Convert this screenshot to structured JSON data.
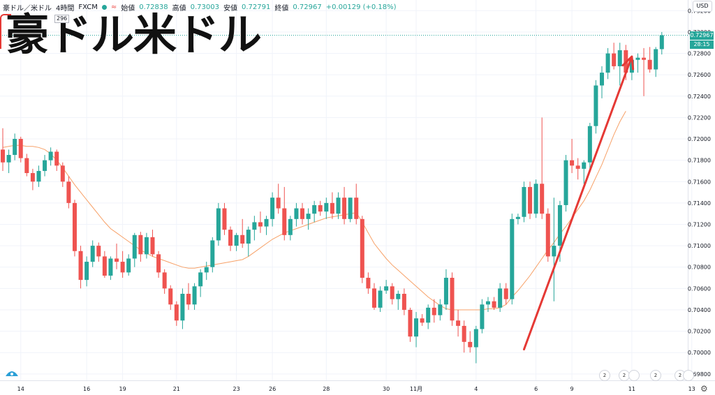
{
  "header": {
    "symbol": "豪ドル／米ドル",
    "interval": "4時間",
    "exchange": "FXCM",
    "market_icon": "≈",
    "open_label": "始値",
    "open_value": "0.72838",
    "high_label": "高値",
    "high_value": "0.73003",
    "low_label": "安値",
    "low_value": "0.72791",
    "close_label": "終値",
    "close_value": "0.72967",
    "change": "+0.00129 (+0.18%)",
    "indicator_value": "296"
  },
  "overlay_title": "豪ドル米ドル",
  "currency_button": "USD",
  "price_tags": {
    "last": "0.72967",
    "countdown": "28:15"
  },
  "events": [
    {
      "count": "2",
      "icon": "globe-flag-icon"
    },
    {
      "count": "2",
      "icon": "us-flag-icon"
    },
    {
      "count": "",
      "icon": "au-flag-icon"
    },
    {
      "count": "2",
      "icon": "us-flag-icon"
    },
    {
      "count": "2",
      "icon": "us-flag-icon"
    },
    {
      "count": "",
      "icon": "us-flag-icon"
    }
  ],
  "colors": {
    "up": "#26a69a",
    "down": "#ef5350",
    "ma": "#f7a168",
    "arrow": "#e53935",
    "grid": "#f0f3fa",
    "axis_text": "#131722"
  },
  "chart_data": {
    "type": "candlestick",
    "y_ticks": [
      "0.73200",
      "0.73000",
      "0.72800",
      "0.72600",
      "0.72400",
      "0.72200",
      "0.72000",
      "0.71800",
      "0.71600",
      "0.71400",
      "0.71200",
      "0.71000",
      "0.70800",
      "0.70600",
      "0.70400",
      "0.70200",
      "0.70000",
      "0.69800"
    ],
    "ylim": [
      0.6974,
      0.733
    ],
    "x_ticks": [
      {
        "label": "14",
        "index": 3
      },
      {
        "label": "16",
        "index": 14
      },
      {
        "label": "19",
        "index": 20
      },
      {
        "label": "21",
        "index": 29
      },
      {
        "label": "23",
        "index": 39
      },
      {
        "label": "26",
        "index": 45
      },
      {
        "label": "28",
        "index": 54
      },
      {
        "label": "30",
        "index": 64
      },
      {
        "label": "11月",
        "index": 69
      },
      {
        "label": "4",
        "index": 79
      },
      {
        "label": "6",
        "index": 89
      },
      {
        "label": "9",
        "index": 95
      },
      {
        "label": "11",
        "index": 105
      },
      {
        "label": "13",
        "index": 115
      }
    ],
    "ohlc": [
      [
        0.719,
        0.721,
        0.717,
        0.7178
      ],
      [
        0.7178,
        0.719,
        0.7168,
        0.7185
      ],
      [
        0.7185,
        0.7205,
        0.718,
        0.72
      ],
      [
        0.72,
        0.7202,
        0.7178,
        0.7182
      ],
      [
        0.7182,
        0.7186,
        0.7165,
        0.7168
      ],
      [
        0.7168,
        0.7172,
        0.7152,
        0.716
      ],
      [
        0.716,
        0.7175,
        0.7155,
        0.717
      ],
      [
        0.717,
        0.7185,
        0.7165,
        0.718
      ],
      [
        0.718,
        0.7192,
        0.7175,
        0.7188
      ],
      [
        0.7188,
        0.719,
        0.717,
        0.7175
      ],
      [
        0.7175,
        0.7178,
        0.7155,
        0.716
      ],
      [
        0.716,
        0.7165,
        0.7135,
        0.714
      ],
      [
        0.714,
        0.7143,
        0.709,
        0.7095
      ],
      [
        0.7095,
        0.71,
        0.706,
        0.7068
      ],
      [
        0.7068,
        0.709,
        0.7062,
        0.7085
      ],
      [
        0.7085,
        0.7105,
        0.708,
        0.71
      ],
      [
        0.71,
        0.7103,
        0.7085,
        0.709
      ],
      [
        0.709,
        0.7095,
        0.707,
        0.7072
      ],
      [
        0.7072,
        0.709,
        0.7068,
        0.7088
      ],
      [
        0.7088,
        0.7102,
        0.7078,
        0.7085
      ],
      [
        0.7085,
        0.7095,
        0.707,
        0.7075
      ],
      [
        0.7075,
        0.7092,
        0.7072,
        0.7088
      ],
      [
        0.7088,
        0.7112,
        0.708,
        0.711
      ],
      [
        0.711,
        0.7113,
        0.7085,
        0.7092
      ],
      [
        0.7092,
        0.7112,
        0.7088,
        0.7108
      ],
      [
        0.7108,
        0.7115,
        0.709,
        0.7092
      ],
      [
        0.7092,
        0.7095,
        0.707,
        0.7075
      ],
      [
        0.7075,
        0.7078,
        0.7055,
        0.706
      ],
      [
        0.706,
        0.7063,
        0.704,
        0.7045
      ],
      [
        0.7045,
        0.7048,
        0.7025,
        0.703
      ],
      [
        0.703,
        0.706,
        0.7022,
        0.7055
      ],
      [
        0.7055,
        0.7065,
        0.704,
        0.7045
      ],
      [
        0.7045,
        0.7065,
        0.704,
        0.7062
      ],
      [
        0.7062,
        0.7078,
        0.7052,
        0.7075
      ],
      [
        0.7075,
        0.7085,
        0.7068,
        0.708
      ],
      [
        0.708,
        0.7108,
        0.7075,
        0.7105
      ],
      [
        0.7105,
        0.714,
        0.71,
        0.7135
      ],
      [
        0.7135,
        0.714,
        0.711,
        0.7115
      ],
      [
        0.7115,
        0.7118,
        0.7095,
        0.71
      ],
      [
        0.71,
        0.7112,
        0.7095,
        0.711
      ],
      [
        0.711,
        0.7125,
        0.7098,
        0.7102
      ],
      [
        0.7102,
        0.7118,
        0.709,
        0.7115
      ],
      [
        0.7115,
        0.7128,
        0.7105,
        0.7122
      ],
      [
        0.7122,
        0.7132,
        0.7112,
        0.7118
      ],
      [
        0.7118,
        0.7128,
        0.711,
        0.7125
      ],
      [
        0.7125,
        0.715,
        0.7118,
        0.7145
      ],
      [
        0.7145,
        0.7158,
        0.713,
        0.7135
      ],
      [
        0.7135,
        0.7155,
        0.7105,
        0.711
      ],
      [
        0.711,
        0.7128,
        0.7105,
        0.7125
      ],
      [
        0.7125,
        0.714,
        0.7118,
        0.7135
      ],
      [
        0.7135,
        0.714,
        0.712,
        0.7125
      ],
      [
        0.7125,
        0.7135,
        0.7115,
        0.713
      ],
      [
        0.713,
        0.7142,
        0.7122,
        0.7138
      ],
      [
        0.7138,
        0.7142,
        0.7128,
        0.7132
      ],
      [
        0.7132,
        0.7145,
        0.7125,
        0.714
      ],
      [
        0.714,
        0.715,
        0.7125,
        0.713
      ],
      [
        0.713,
        0.715,
        0.7125,
        0.7145
      ],
      [
        0.7145,
        0.7155,
        0.712,
        0.7125
      ],
      [
        0.7125,
        0.7145,
        0.7122,
        0.7145
      ],
      [
        0.7145,
        0.7158,
        0.712,
        0.7125
      ],
      [
        0.7125,
        0.7128,
        0.7065,
        0.707
      ],
      [
        0.707,
        0.7075,
        0.7055,
        0.706
      ],
      [
        0.706,
        0.7065,
        0.704,
        0.7042
      ],
      [
        0.7042,
        0.7062,
        0.7038,
        0.7058
      ],
      [
        0.7058,
        0.7068,
        0.7055,
        0.7062
      ],
      [
        0.7062,
        0.7065,
        0.7045,
        0.705
      ],
      [
        0.705,
        0.7058,
        0.704,
        0.7055
      ],
      [
        0.7055,
        0.706,
        0.7035,
        0.704
      ],
      [
        0.704,
        0.7042,
        0.701,
        0.7015
      ],
      [
        0.7015,
        0.7038,
        0.7005,
        0.7032
      ],
      [
        0.7032,
        0.7036,
        0.7025,
        0.7028
      ],
      [
        0.7028,
        0.7045,
        0.7022,
        0.7042
      ],
      [
        0.7042,
        0.705,
        0.7028,
        0.7035
      ],
      [
        0.7035,
        0.705,
        0.703,
        0.7045
      ],
      [
        0.7045,
        0.7078,
        0.704,
        0.707
      ],
      [
        0.707,
        0.7075,
        0.7025,
        0.703
      ],
      [
        0.703,
        0.704,
        0.7015,
        0.7025
      ],
      [
        0.7025,
        0.703,
        0.7,
        0.701
      ],
      [
        0.701,
        0.702,
        0.7,
        0.7005
      ],
      [
        0.7005,
        0.7025,
        0.699,
        0.7022
      ],
      [
        0.7022,
        0.705,
        0.7018,
        0.7045
      ],
      [
        0.7045,
        0.7052,
        0.7038,
        0.7048
      ],
      [
        0.7048,
        0.7052,
        0.704,
        0.7042
      ],
      [
        0.7042,
        0.7065,
        0.7038,
        0.706
      ],
      [
        0.706,
        0.7065,
        0.7045,
        0.705
      ],
      [
        0.705,
        0.713,
        0.7045,
        0.7125
      ],
      [
        0.7125,
        0.713,
        0.712,
        0.7127
      ],
      [
        0.7127,
        0.716,
        0.7122,
        0.7155
      ],
      [
        0.7155,
        0.716,
        0.7125,
        0.713
      ],
      [
        0.713,
        0.7162,
        0.7126,
        0.7158
      ],
      [
        0.7158,
        0.722,
        0.7125,
        0.713
      ],
      [
        0.713,
        0.7135,
        0.7085,
        0.709
      ],
      [
        0.709,
        0.7145,
        0.7048,
        0.71
      ],
      [
        0.71,
        0.7142,
        0.7085,
        0.7138
      ],
      [
        0.7138,
        0.7185,
        0.7132,
        0.718
      ],
      [
        0.718,
        0.72,
        0.7168,
        0.7175
      ],
      [
        0.7175,
        0.7182,
        0.7162,
        0.7172
      ],
      [
        0.7172,
        0.718,
        0.7158,
        0.7178
      ],
      [
        0.7178,
        0.7215,
        0.7172,
        0.7212
      ],
      [
        0.7212,
        0.7255,
        0.7205,
        0.725
      ],
      [
        0.725,
        0.7268,
        0.7238,
        0.7262
      ],
      [
        0.7262,
        0.7285,
        0.7256,
        0.728
      ],
      [
        0.728,
        0.729,
        0.7265,
        0.7268
      ],
      [
        0.7268,
        0.729,
        0.725,
        0.7283
      ],
      [
        0.7283,
        0.7288,
        0.7255,
        0.7262
      ],
      [
        0.7262,
        0.7278,
        0.7255,
        0.7274
      ],
      [
        0.7274,
        0.728,
        0.7262,
        0.7276
      ],
      [
        0.7276,
        0.7285,
        0.724,
        0.7274
      ],
      [
        0.7274,
        0.7286,
        0.7262,
        0.7265
      ],
      [
        0.7265,
        0.7286,
        0.7258,
        0.7284
      ],
      [
        0.7284,
        0.73,
        0.7279,
        0.7297
      ]
    ],
    "ma": [
      0.7192,
      0.7193,
      0.7194,
      0.7194,
      0.7193,
      0.7193,
      0.7192,
      0.719,
      0.7186,
      0.718,
      0.7173,
      0.7165,
      0.7157,
      0.715,
      0.7143,
      0.7136,
      0.7129,
      0.7122,
      0.7116,
      0.7112,
      0.7108,
      0.7104,
      0.71,
      0.7096,
      0.7093,
      0.709,
      0.7088,
      0.7086,
      0.7084,
      0.7082,
      0.708,
      0.7079,
      0.7079,
      0.708,
      0.7081,
      0.7082,
      0.7083,
      0.7084,
      0.7085,
      0.7086,
      0.7087,
      0.709,
      0.7094,
      0.7098,
      0.7102,
      0.7106,
      0.7109,
      0.7112,
      0.7114,
      0.7116,
      0.7118,
      0.712,
      0.7122,
      0.7124,
      0.7126,
      0.7127,
      0.7128,
      0.7129,
      0.713,
      0.7131,
      0.7122,
      0.7112,
      0.7102,
      0.7095,
      0.7088,
      0.7082,
      0.7077,
      0.7072,
      0.7067,
      0.7062,
      0.7057,
      0.7052,
      0.7048,
      0.7044,
      0.7041,
      0.704,
      0.704,
      0.704,
      0.704,
      0.704,
      0.704,
      0.7041,
      0.7041,
      0.7042,
      0.7045,
      0.7052,
      0.7058,
      0.7065,
      0.7072,
      0.708,
      0.7088,
      0.7096,
      0.7103,
      0.7111,
      0.7118,
      0.7126,
      0.7134,
      0.7142,
      0.7152,
      0.7164,
      0.7176,
      0.719,
      0.7204,
      0.7216,
      0.7226
    ],
    "annotation_arrow": {
      "from": {
        "index": 87,
        "price": 0.7003
      },
      "to": {
        "index": 105,
        "price": 0.7277
      }
    }
  }
}
